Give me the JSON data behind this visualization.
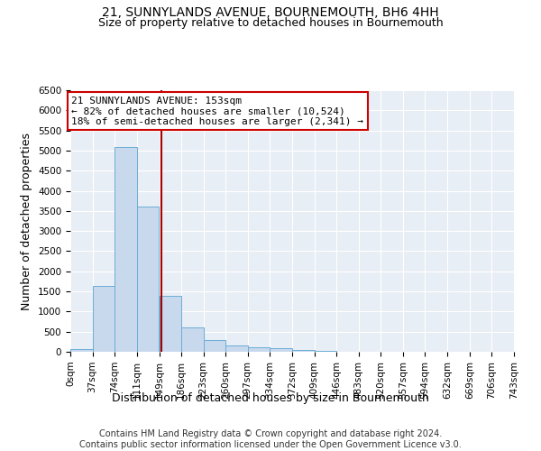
{
  "title": "21, SUNNYLANDS AVENUE, BOURNEMOUTH, BH6 4HH",
  "subtitle": "Size of property relative to detached houses in Bournemouth",
  "xlabel": "Distribution of detached houses by size in Bournemouth",
  "ylabel": "Number of detached properties",
  "bar_color": "#c8d9ee",
  "bar_edge_color": "#6baed6",
  "vline_x": 153,
  "vline_color": "#aa0000",
  "annotation_line1": "21 SUNNYLANDS AVENUE: 153sqm",
  "annotation_line2": "← 82% of detached houses are smaller (10,524)",
  "annotation_line3": "18% of semi-detached houses are larger (2,341) →",
  "footer_line1": "Contains HM Land Registry data © Crown copyright and database right 2024.",
  "footer_line2": "Contains public sector information licensed under the Open Government Licence v3.0.",
  "bin_edges": [
    0,
    37,
    74,
    111,
    149,
    186,
    223,
    260,
    297,
    334,
    372,
    409,
    446,
    483,
    520,
    557,
    594,
    632,
    669,
    706,
    743
  ],
  "bin_labels": [
    "0sqm",
    "37sqm",
    "74sqm",
    "111sqm",
    "149sqm",
    "186sqm",
    "223sqm",
    "260sqm",
    "297sqm",
    "334sqm",
    "372sqm",
    "409sqm",
    "446sqm",
    "483sqm",
    "520sqm",
    "557sqm",
    "594sqm",
    "632sqm",
    "669sqm",
    "706sqm",
    "743sqm"
  ],
  "counts": [
    60,
    1640,
    5080,
    3600,
    1400,
    600,
    300,
    150,
    120,
    90,
    50,
    30,
    10,
    5,
    5,
    0,
    0,
    0,
    0,
    0
  ],
  "ylim": [
    0,
    6500
  ],
  "yticks": [
    0,
    500,
    1000,
    1500,
    2000,
    2500,
    3000,
    3500,
    4000,
    4500,
    5000,
    5500,
    6000,
    6500
  ],
  "background_color": "#e8eef5",
  "grid_color": "#ffffff",
  "title_fontsize": 10,
  "subtitle_fontsize": 9,
  "xlabel_fontsize": 9,
  "ylabel_fontsize": 9,
  "tick_fontsize": 7.5,
  "footer_fontsize": 7,
  "annot_fontsize": 8
}
